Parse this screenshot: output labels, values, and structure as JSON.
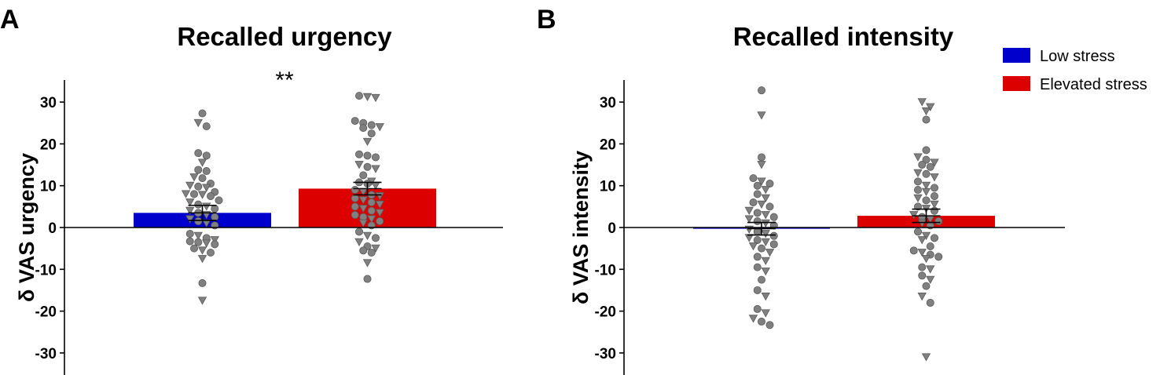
{
  "legend": [
    {
      "label": "Low stress",
      "color": "#0000cc"
    },
    {
      "label": "Elevated stress",
      "color": "#dd0000"
    }
  ],
  "point_color": "#808080",
  "chart_data": [
    {
      "type": "bar",
      "panel_label": "A",
      "title": "Recalled urgency",
      "ylabel": "δ VAS urgency",
      "xlabel": "",
      "ylim": [
        -35,
        35
      ],
      "yticks": [
        30,
        20,
        10,
        0,
        -10,
        -20,
        -30
      ],
      "categories": [
        "Low stress",
        "Elevated stress"
      ],
      "values": [
        3.5,
        9.3
      ],
      "errors": [
        1.8,
        1.5
      ],
      "significance": "**",
      "points": [
        [
          {
            "v": 27.3,
            "s": "c"
          },
          {
            "v": 25,
            "s": "t"
          },
          {
            "v": 24.2,
            "s": "c"
          },
          {
            "v": 17.8,
            "s": "c"
          },
          {
            "v": 17.2,
            "s": "c"
          },
          {
            "v": 15.5,
            "s": "t"
          },
          {
            "v": 13.8,
            "s": "c"
          },
          {
            "v": 13.5,
            "s": "c"
          },
          {
            "v": 12,
            "s": "t"
          },
          {
            "v": 11.8,
            "s": "c"
          },
          {
            "v": 10.5,
            "s": "c"
          },
          {
            "v": 10,
            "s": "t"
          },
          {
            "v": 9.8,
            "s": "c"
          },
          {
            "v": 9.5,
            "s": "t"
          },
          {
            "v": 8.5,
            "s": "c"
          },
          {
            "v": 8,
            "s": "t"
          },
          {
            "v": 8,
            "s": "c"
          },
          {
            "v": 7.8,
            "s": "t"
          },
          {
            "v": 7.5,
            "s": "c"
          },
          {
            "v": 6.5,
            "s": "c"
          },
          {
            "v": 6,
            "s": "t"
          },
          {
            "v": 5.5,
            "s": "c"
          },
          {
            "v": 5,
            "s": "t"
          },
          {
            "v": 4.5,
            "s": "c"
          },
          {
            "v": 4,
            "s": "t"
          },
          {
            "v": 3.5,
            "s": "c"
          },
          {
            "v": 3,
            "s": "t"
          },
          {
            "v": 2.5,
            "s": "c"
          },
          {
            "v": 2,
            "s": "t"
          },
          {
            "v": 1.5,
            "s": "c"
          },
          {
            "v": 1,
            "s": "t"
          },
          {
            "v": 0.5,
            "s": "c"
          },
          {
            "v": -1.5,
            "s": "c"
          },
          {
            "v": -2,
            "s": "t"
          },
          {
            "v": -2.5,
            "s": "c"
          },
          {
            "v": -3,
            "s": "t"
          },
          {
            "v": -3.3,
            "s": "c"
          },
          {
            "v": -3.5,
            "s": "c"
          },
          {
            "v": -3.8,
            "s": "t"
          },
          {
            "v": -4,
            "s": "c"
          },
          {
            "v": -5,
            "s": "c"
          },
          {
            "v": -5.5,
            "s": "t"
          },
          {
            "v": -6,
            "s": "c"
          },
          {
            "v": -7.5,
            "s": "t"
          },
          {
            "v": -13.3,
            "s": "c"
          },
          {
            "v": -17.5,
            "s": "t"
          }
        ],
        [
          {
            "v": 31.5,
            "s": "c"
          },
          {
            "v": 31.2,
            "s": "t"
          },
          {
            "v": 31,
            "s": "t"
          },
          {
            "v": 25.5,
            "s": "c"
          },
          {
            "v": 25,
            "s": "c"
          },
          {
            "v": 24.5,
            "s": "c"
          },
          {
            "v": 24,
            "s": "t"
          },
          {
            "v": 23.8,
            "s": "c"
          },
          {
            "v": 22.5,
            "s": "c"
          },
          {
            "v": 20.5,
            "s": "t"
          },
          {
            "v": 17.5,
            "s": "c"
          },
          {
            "v": 17.2,
            "s": "c"
          },
          {
            "v": 16.8,
            "s": "c"
          },
          {
            "v": 15,
            "s": "t"
          },
          {
            "v": 14.5,
            "s": "c"
          },
          {
            "v": 14,
            "s": "t"
          },
          {
            "v": 12.5,
            "s": "c"
          },
          {
            "v": 11,
            "s": "t"
          },
          {
            "v": 10.8,
            "s": "c"
          },
          {
            "v": 10.5,
            "s": "c"
          },
          {
            "v": 10,
            "s": "t"
          },
          {
            "v": 9,
            "s": "c"
          },
          {
            "v": 8.5,
            "s": "t"
          },
          {
            "v": 7.8,
            "s": "c"
          },
          {
            "v": 7.5,
            "s": "t"
          },
          {
            "v": 7,
            "s": "c"
          },
          {
            "v": 6.5,
            "s": "t"
          },
          {
            "v": 6,
            "s": "c"
          },
          {
            "v": 5.5,
            "s": "t"
          },
          {
            "v": 5,
            "s": "c"
          },
          {
            "v": 4.5,
            "s": "t"
          },
          {
            "v": 4,
            "s": "c"
          },
          {
            "v": 3.5,
            "s": "t"
          },
          {
            "v": 3,
            "s": "c"
          },
          {
            "v": 2.5,
            "s": "c"
          },
          {
            "v": 2,
            "s": "t"
          },
          {
            "v": 1.5,
            "s": "c"
          },
          {
            "v": 1,
            "s": "t"
          },
          {
            "v": 0.5,
            "s": "c"
          },
          {
            "v": -1,
            "s": "c"
          },
          {
            "v": -2,
            "s": "t"
          },
          {
            "v": -2.5,
            "s": "c"
          },
          {
            "v": -3.5,
            "s": "t"
          },
          {
            "v": -4.5,
            "s": "c"
          },
          {
            "v": -5,
            "s": "t"
          },
          {
            "v": -5.5,
            "s": "c"
          },
          {
            "v": -6,
            "s": "c"
          },
          {
            "v": -8.5,
            "s": "t"
          },
          {
            "v": -12.3,
            "s": "c"
          }
        ]
      ]
    },
    {
      "type": "bar",
      "panel_label": "B",
      "title": "Recalled intensity",
      "ylabel": "δ VAS intensity",
      "xlabel": "",
      "ylim": [
        -35,
        35
      ],
      "yticks": [
        30,
        20,
        10,
        0,
        -10,
        -20,
        -30
      ],
      "categories": [
        "Low stress",
        "Elevated stress"
      ],
      "values": [
        -0.3,
        2.8
      ],
      "errors": [
        1.5,
        1.6
      ],
      "significance": "",
      "points": [
        [
          {
            "v": 32.8,
            "s": "c"
          },
          {
            "v": 26.8,
            "s": "t"
          },
          {
            "v": 16.8,
            "s": "c"
          },
          {
            "v": 15,
            "s": "t"
          },
          {
            "v": 11.8,
            "s": "c"
          },
          {
            "v": 11,
            "s": "t"
          },
          {
            "v": 10.5,
            "s": "c"
          },
          {
            "v": 10,
            "s": "c"
          },
          {
            "v": 9,
            "s": "t"
          },
          {
            "v": 8,
            "s": "c"
          },
          {
            "v": 7,
            "s": "t"
          },
          {
            "v": 6,
            "s": "c"
          },
          {
            "v": 5.5,
            "s": "t"
          },
          {
            "v": 5,
            "s": "c"
          },
          {
            "v": 4,
            "s": "t"
          },
          {
            "v": 3.5,
            "s": "c"
          },
          {
            "v": 3,
            "s": "t"
          },
          {
            "v": 2.5,
            "s": "c"
          },
          {
            "v": 2,
            "s": "t"
          },
          {
            "v": 1.5,
            "s": "c"
          },
          {
            "v": 1,
            "s": "t"
          },
          {
            "v": 0.5,
            "s": "c"
          },
          {
            "v": -0.5,
            "s": "t"
          },
          {
            "v": -1,
            "s": "c"
          },
          {
            "v": -1.5,
            "s": "t"
          },
          {
            "v": -2,
            "s": "c"
          },
          {
            "v": -2.5,
            "s": "t"
          },
          {
            "v": -3,
            "s": "c"
          },
          {
            "v": -3.5,
            "s": "t"
          },
          {
            "v": -4,
            "s": "c"
          },
          {
            "v": -4.5,
            "s": "t"
          },
          {
            "v": -5,
            "s": "c"
          },
          {
            "v": -6,
            "s": "t"
          },
          {
            "v": -7,
            "s": "c"
          },
          {
            "v": -8,
            "s": "t"
          },
          {
            "v": -9.5,
            "s": "c"
          },
          {
            "v": -10.5,
            "s": "t"
          },
          {
            "v": -12.5,
            "s": "c"
          },
          {
            "v": -15,
            "s": "c"
          },
          {
            "v": -16.5,
            "s": "t"
          },
          {
            "v": -19.5,
            "s": "c"
          },
          {
            "v": -20.5,
            "s": "t"
          },
          {
            "v": -21.8,
            "s": "t"
          },
          {
            "v": -22.5,
            "s": "c"
          },
          {
            "v": -23.3,
            "s": "c"
          }
        ],
        [
          {
            "v": 30,
            "s": "t"
          },
          {
            "v": 28.8,
            "s": "t"
          },
          {
            "v": 27.8,
            "s": "t"
          },
          {
            "v": 25.8,
            "s": "c"
          },
          {
            "v": 18.5,
            "s": "c"
          },
          {
            "v": 16.8,
            "s": "t"
          },
          {
            "v": 16.2,
            "s": "c"
          },
          {
            "v": 15.5,
            "s": "t"
          },
          {
            "v": 15,
            "s": "c"
          },
          {
            "v": 14.5,
            "s": "c"
          },
          {
            "v": 13,
            "s": "t"
          },
          {
            "v": 12.8,
            "s": "c"
          },
          {
            "v": 12,
            "s": "t"
          },
          {
            "v": 11,
            "s": "c"
          },
          {
            "v": 10,
            "s": "t"
          },
          {
            "v": 9.5,
            "s": "c"
          },
          {
            "v": 9,
            "s": "c"
          },
          {
            "v": 8.5,
            "s": "t"
          },
          {
            "v": 7.5,
            "s": "c"
          },
          {
            "v": 7,
            "s": "t"
          },
          {
            "v": 6.5,
            "s": "c"
          },
          {
            "v": 5.5,
            "s": "t"
          },
          {
            "v": 5,
            "s": "c"
          },
          {
            "v": 4.5,
            "s": "t"
          },
          {
            "v": 4,
            "s": "c"
          },
          {
            "v": 3,
            "s": "t"
          },
          {
            "v": 2.5,
            "s": "c"
          },
          {
            "v": 2,
            "s": "t"
          },
          {
            "v": 1.5,
            "s": "c"
          },
          {
            "v": 1,
            "s": "t"
          },
          {
            "v": 0.5,
            "s": "c"
          },
          {
            "v": -1,
            "s": "c"
          },
          {
            "v": -2,
            "s": "t"
          },
          {
            "v": -2.5,
            "s": "c"
          },
          {
            "v": -3,
            "s": "t"
          },
          {
            "v": -4.5,
            "s": "c"
          },
          {
            "v": -5.5,
            "s": "c"
          },
          {
            "v": -6,
            "s": "t"
          },
          {
            "v": -6.5,
            "s": "c"
          },
          {
            "v": -7,
            "s": "c"
          },
          {
            "v": -7.5,
            "s": "t"
          },
          {
            "v": -9.5,
            "s": "c"
          },
          {
            "v": -10,
            "s": "t"
          },
          {
            "v": -11.5,
            "s": "c"
          },
          {
            "v": -12.5,
            "s": "t"
          },
          {
            "v": -14,
            "s": "c"
          },
          {
            "v": -16.5,
            "s": "t"
          },
          {
            "v": -18,
            "s": "c"
          },
          {
            "v": -31,
            "s": "t"
          }
        ]
      ]
    }
  ]
}
